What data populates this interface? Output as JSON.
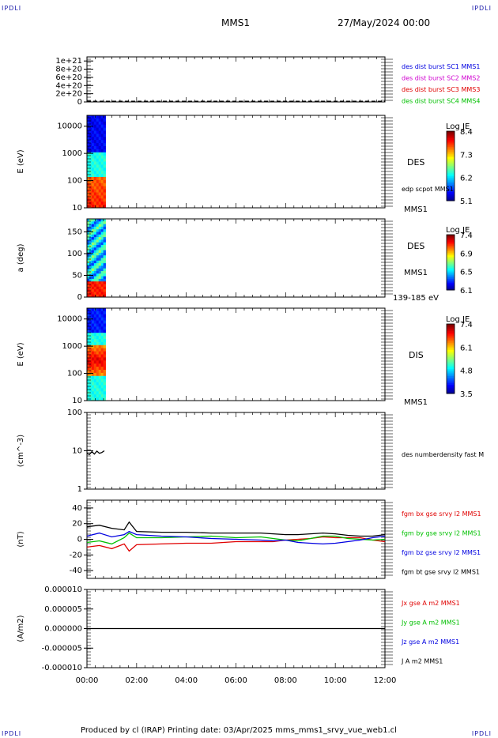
{
  "header": {
    "corner_tl": "IPDLI",
    "corner_tr": "IPDLI",
    "corner_bl": "IPDLI",
    "corner_br": "IPDLI",
    "spacecraft": "MMS1",
    "datetime": "27/May/2024 00:00"
  },
  "footer": {
    "text": "Produced by cl (IRAP)    Printing date: 03/Apr/2025    mms_mms1_srvy_vue_web1.cl"
  },
  "x_axis": {
    "ticks": [
      "00:00",
      "02:00",
      "04:00",
      "06:00",
      "08:00",
      "10:00",
      "12:00"
    ],
    "range_hours": [
      0,
      12
    ]
  },
  "colors": {
    "red": "#e00000",
    "green": "#00c000",
    "blue": "#0000e0",
    "magenta": "#d000d0",
    "black": "#000000"
  },
  "chart_data": [
    {
      "type": "line",
      "title": "",
      "ylabel": "",
      "ylim": [
        0,
        1.1e+21
      ],
      "yticks": [
        "1e+21",
        "8e+20",
        "6e+20",
        "4e+20",
        "2e+20",
        "0"
      ],
      "legend": [
        {
          "name": "des dist burst SC1 MMS1",
          "color": "#0000e0"
        },
        {
          "name": "des dist burst SC2 MMS2",
          "color": "#d000d0"
        },
        {
          "name": "des dist burst SC3 MMS3",
          "color": "#e00000"
        },
        {
          "name": "des dist burst SC4 MMS4",
          "color": "#00c000"
        }
      ],
      "series": [
        {
          "name": "",
          "x": [
            0,
            12
          ],
          "y": [
            0,
            0
          ],
          "style": "dashed"
        }
      ]
    },
    {
      "type": "heatmap",
      "ylabel": "E (eV)",
      "yscale": "log",
      "ylim": [
        10,
        25000
      ],
      "yticks": [
        "10000",
        "1000",
        "100",
        "10"
      ],
      "side_labels": [
        "DES",
        "edp scpot MMS1",
        "MMS1"
      ],
      "colorbar": {
        "title": "Log JE",
        "ticks": [
          "8.4",
          "7.3",
          "6.2",
          "5.1"
        ],
        "range": [
          5.1,
          8.4
        ]
      },
      "data_interval_hours": [
        0,
        0.75
      ]
    },
    {
      "type": "heatmap",
      "ylabel": "a (deg)",
      "ylim": [
        0,
        180
      ],
      "yticks": [
        "150",
        "100",
        "50",
        "0"
      ],
      "side_labels": [
        "DES",
        "MMS1",
        "139-185 eV"
      ],
      "colorbar": {
        "title": "Log JE",
        "ticks": [
          "7.4",
          "6.9",
          "6.5",
          "6.1"
        ],
        "range": [
          6.1,
          7.4
        ]
      },
      "data_interval_hours": [
        0,
        0.75
      ]
    },
    {
      "type": "heatmap",
      "ylabel": "E (eV)",
      "yscale": "log",
      "ylim": [
        10,
        25000
      ],
      "yticks": [
        "10000",
        "1000",
        "100",
        "10"
      ],
      "side_labels": [
        "DIS",
        "MMS1"
      ],
      "colorbar": {
        "title": "Log JE",
        "ticks": [
          "7.4",
          "6.1",
          "4.8",
          "3.5"
        ],
        "range": [
          3.5,
          7.4
        ]
      },
      "data_interval_hours": [
        0,
        0.75
      ]
    },
    {
      "type": "line",
      "ylabel": "(cm^-3)",
      "yscale": "log",
      "ylim": [
        1,
        100
      ],
      "yticks": [
        "100",
        "10",
        "1"
      ],
      "legend": [
        {
          "name": "des numberdensity fast M",
          "color": "#000000"
        }
      ],
      "series": [
        {
          "name": "des numberdensity fast M",
          "x": [
            0.0,
            0.1,
            0.2,
            0.3,
            0.4,
            0.5,
            0.6,
            0.7
          ],
          "y": [
            8.5,
            8.0,
            9.5,
            8.2,
            9.8,
            8.6,
            9.0,
            10.0
          ]
        }
      ]
    },
    {
      "type": "line",
      "ylabel": "(nT)",
      "ylim": [
        -50,
        50
      ],
      "yticks": [
        "40",
        "20",
        "0",
        "-20",
        "-40"
      ],
      "legend": [
        {
          "name": "fgm bx gse srvy l2 MMS1",
          "color": "#e00000"
        },
        {
          "name": "fgm by gse srvy l2 MMS1",
          "color": "#00c000"
        },
        {
          "name": "fgm bz gse srvy l2 MMS1",
          "color": "#0000e0"
        },
        {
          "name": "fgm bt gse srvy l2 MMS1",
          "color": "#000000"
        }
      ],
      "series": [
        {
          "name": "fgm bx gse srvy l2 MMS1",
          "x": [
            0.0,
            0.5,
            1.0,
            1.5,
            1.7,
            2.0,
            3.0,
            4.0,
            5.0,
            6.0,
            7.0,
            7.5,
            8.0,
            8.5,
            9.0,
            9.5,
            10.0,
            10.5,
            11.0,
            11.5,
            12.0
          ],
          "y": [
            -10,
            -8,
            -12,
            -6,
            -15,
            -7,
            -6,
            -5,
            -5,
            -3,
            -3,
            -3,
            -1,
            0,
            1,
            3,
            2,
            2,
            2,
            -1,
            -3
          ]
        },
        {
          "name": "fgm by gse srvy l2 MMS1",
          "x": [
            0.0,
            0.5,
            1.0,
            1.5,
            1.7,
            2.0,
            3.0,
            4.0,
            5.0,
            6.0,
            7.0,
            7.5,
            8.0,
            8.5,
            9.0,
            9.5,
            10.0,
            10.5,
            11.0,
            11.5,
            12.0
          ],
          "y": [
            -4,
            -2,
            -6,
            2,
            8,
            2,
            2,
            3,
            4,
            2,
            3,
            1,
            -1,
            -2,
            1,
            4,
            4,
            1,
            0,
            -1,
            0
          ]
        },
        {
          "name": "fgm bz gse srvy l2 MMS1",
          "x": [
            0.0,
            0.5,
            1.0,
            1.5,
            1.7,
            2.0,
            3.0,
            4.0,
            5.0,
            6.0,
            7.0,
            7.5,
            8.0,
            8.5,
            9.0,
            9.5,
            10.0,
            10.5,
            11.0,
            11.5,
            12.0
          ],
          "y": [
            4,
            8,
            3,
            6,
            10,
            6,
            4,
            3,
            1,
            0,
            -1,
            -2,
            -1,
            -4,
            -5,
            -6,
            -5,
            -3,
            -1,
            2,
            4
          ]
        },
        {
          "name": "fgm bt gse srvy l2 MMS1",
          "x": [
            0.0,
            0.5,
            1.0,
            1.5,
            1.7,
            2.0,
            3.0,
            4.0,
            5.0,
            6.0,
            7.0,
            7.5,
            8.0,
            8.5,
            9.0,
            9.5,
            10.0,
            10.5,
            11.0,
            11.5,
            12.0
          ],
          "y": [
            16,
            18,
            14,
            12,
            22,
            10,
            9,
            9,
            8,
            8,
            8,
            7,
            6,
            6,
            7,
            8,
            7,
            5,
            4,
            4,
            6
          ]
        }
      ]
    },
    {
      "type": "line",
      "ylabel": "(A/m2)",
      "ylim": [
        -1e-05,
        1e-05
      ],
      "yticks": [
        "0.000010",
        "0.000005",
        "0.000000",
        "-0.000005",
        "-0.000010"
      ],
      "legend": [
        {
          "name": "Jx gse A m2 MMS1",
          "color": "#e00000"
        },
        {
          "name": "Jy gse A m2 MMS1",
          "color": "#00c000"
        },
        {
          "name": "Jz gse A m2 MMS1",
          "color": "#0000e0"
        },
        {
          "name": "J A m2 MMS1",
          "color": "#000000"
        }
      ],
      "series": [
        {
          "name": "J A m2 MMS1",
          "x": [
            0.0,
            12.0
          ],
          "y": [
            0.0,
            0.0
          ]
        }
      ]
    }
  ]
}
